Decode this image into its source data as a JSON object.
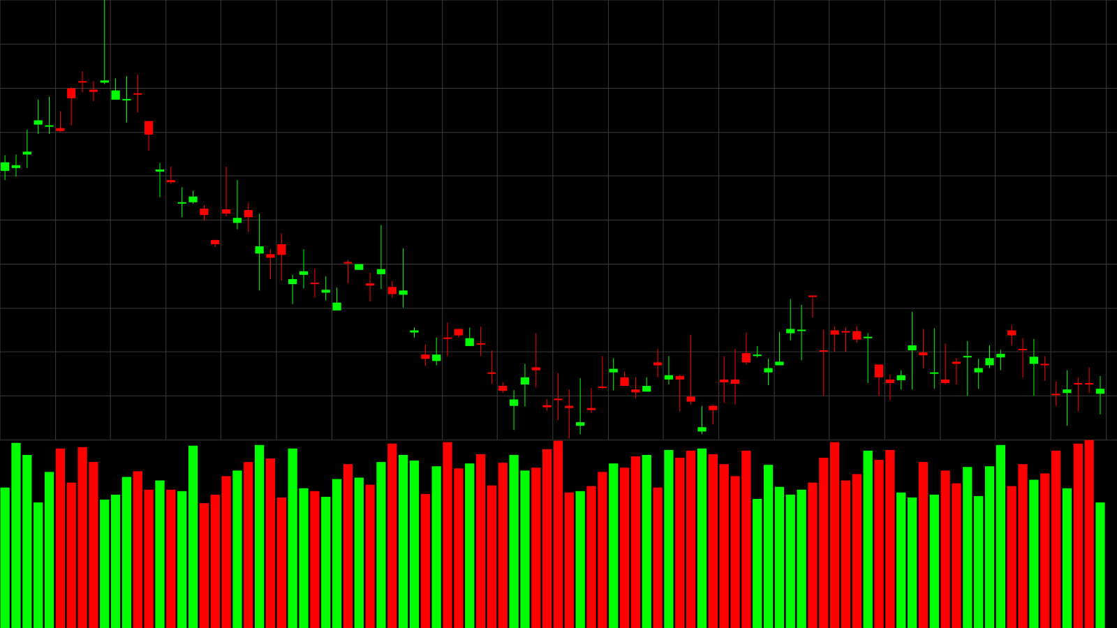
{
  "chart_data": {
    "type": "candlestick",
    "background": "#000000",
    "up_color": "#00ff00",
    "down_color": "#ff0000",
    "grid": true,
    "grid_color": "#3a3a3a",
    "ylim": [
      0,
      618
    ],
    "yticks": [
      0,
      62,
      124,
      185,
      247,
      309,
      371,
      432,
      494,
      556,
      618
    ],
    "volume_ylim": [
      0,
      265
    ],
    "open": [
      378,
      382,
      401,
      443,
      440,
      438,
      494,
      504,
      492,
      502,
      478,
      477,
      487,
      448,
      377,
      365,
      332,
      334,
      325,
      281,
      324,
      305,
      323,
      262,
      261,
      275,
      219,
      232,
      221,
      207,
      182,
      250,
      239,
      220,
      233,
      215,
      204,
      151,
      120,
      111,
      144,
      156,
      132,
      136,
      95,
      76,
      48,
      78,
      102,
      49,
      58,
      48,
      20,
      45,
      75,
      95,
      88,
      71,
      68,
      109,
      85,
      90,
      61,
      12,
      48,
      85,
      85,
      122,
      118,
      95,
      105,
      150,
      153,
      203,
      126,
      154,
      153,
      153,
      143,
      106,
      85,
      84,
      126,
      123,
      93,
      85,
      110,
      116,
      95,
      105,
      116,
      154,
      128,
      107,
      107,
      65,
      66,
      80,
      80,
      65
    ],
    "high": [
      400,
      401,
      436,
      478,
      482,
      462,
      496,
      518,
      504,
      618,
      508,
      511,
      513,
      448,
      389,
      384,
      355,
      350,
      330,
      281,
      384,
      365,
      333,
      318,
      268,
      290,
      232,
      268,
      241,
      230,
      214,
      253,
      247,
      235,
      302,
      223,
      269,
      158,
      134,
      144,
      165,
      156,
      158,
      159,
      126,
      81,
      70,
      107,
      150,
      57,
      94,
      71,
      87,
      73,
      118,
      115,
      96,
      88,
      88,
      128,
      118,
      92,
      148,
      48,
      50,
      118,
      128,
      151,
      132,
      114,
      152,
      198,
      190,
      203,
      155,
      160,
      158,
      160,
      150,
      106,
      92,
      98,
      180,
      156,
      157,
      136,
      115,
      139,
      114,
      133,
      127,
      161,
      143,
      142,
      118,
      82,
      98,
      88,
      102,
      90
    ],
    "low": [
      365,
      370,
      382,
      430,
      430,
      432,
      442,
      488,
      476,
      500,
      478,
      446,
      460,
      406,
      341,
      360,
      313,
      332,
      308,
      271,
      314,
      296,
      292,
      210,
      226,
      224,
      191,
      213,
      200,
      196,
      182,
      220,
      239,
      195,
      212,
      200,
      186,
      144,
      104,
      105,
      118,
      144,
      132,
      118,
      79,
      66,
      14,
      47,
      74,
      41,
      28,
      2,
      8,
      38,
      72,
      70,
      76,
      59,
      68,
      88,
      78,
      40,
      50,
      8,
      22,
      52,
      50,
      106,
      116,
      77,
      105,
      140,
      112,
      172,
      62,
      124,
      124,
      137,
      80,
      62,
      56,
      71,
      71,
      101,
      72,
      78,
      78,
      62,
      72,
      101,
      98,
      133,
      88,
      62,
      83,
      48,
      20,
      40,
      66,
      36
    ],
    "close": [
      390,
      386,
      405,
      449,
      442,
      434,
      480,
      502,
      489,
      505,
      491,
      479,
      485,
      429,
      380,
      362,
      334,
      342,
      316,
      275,
      318,
      312,
      313,
      272,
      256,
      260,
      226,
      237,
      219,
      211,
      193,
      248,
      247,
      217,
      240,
      205,
      210,
      154,
      114,
      120,
      142,
      147,
      143,
      134,
      93,
      69,
      57,
      88,
      98,
      46,
      56,
      45,
      25,
      42,
      73,
      100,
      76,
      67,
      76,
      105,
      91,
      85,
      54,
      18,
      42,
      81,
      79,
      109,
      120,
      101,
      110,
      156,
      155,
      201,
      124,
      148,
      151,
      141,
      145,
      88,
      80,
      91,
      133,
      119,
      95,
      80,
      107,
      118,
      101,
      115,
      121,
      147,
      126,
      117,
      105,
      63,
      71,
      78,
      78,
      72
    ],
    "volume": [
      198,
      261,
      244,
      177,
      220,
      253,
      205,
      255,
      234,
      181,
      188,
      213,
      221,
      195,
      208,
      195,
      193,
      257,
      176,
      188,
      214,
      222,
      234,
      258,
      239,
      184,
      253,
      197,
      193,
      185,
      210,
      231,
      212,
      202,
      234,
      260,
      244,
      236,
      189,
      228,
      262,
      225,
      232,
      245,
      201,
      233,
      244,
      222,
      226,
      252,
      264,
      191,
      193,
      200,
      220,
      232,
      226,
      242,
      244,
      198,
      251,
      240,
      250,
      253,
      245,
      231,
      214,
      250,
      182,
      230,
      199,
      188,
      195,
      205,
      240,
      262,
      208,
      217,
      250,
      237,
      251,
      191,
      184,
      234,
      188,
      222,
      204,
      227,
      186,
      228,
      258,
      200,
      231,
      209,
      218,
      250,
      197,
      260,
      265,
      177
    ]
  }
}
